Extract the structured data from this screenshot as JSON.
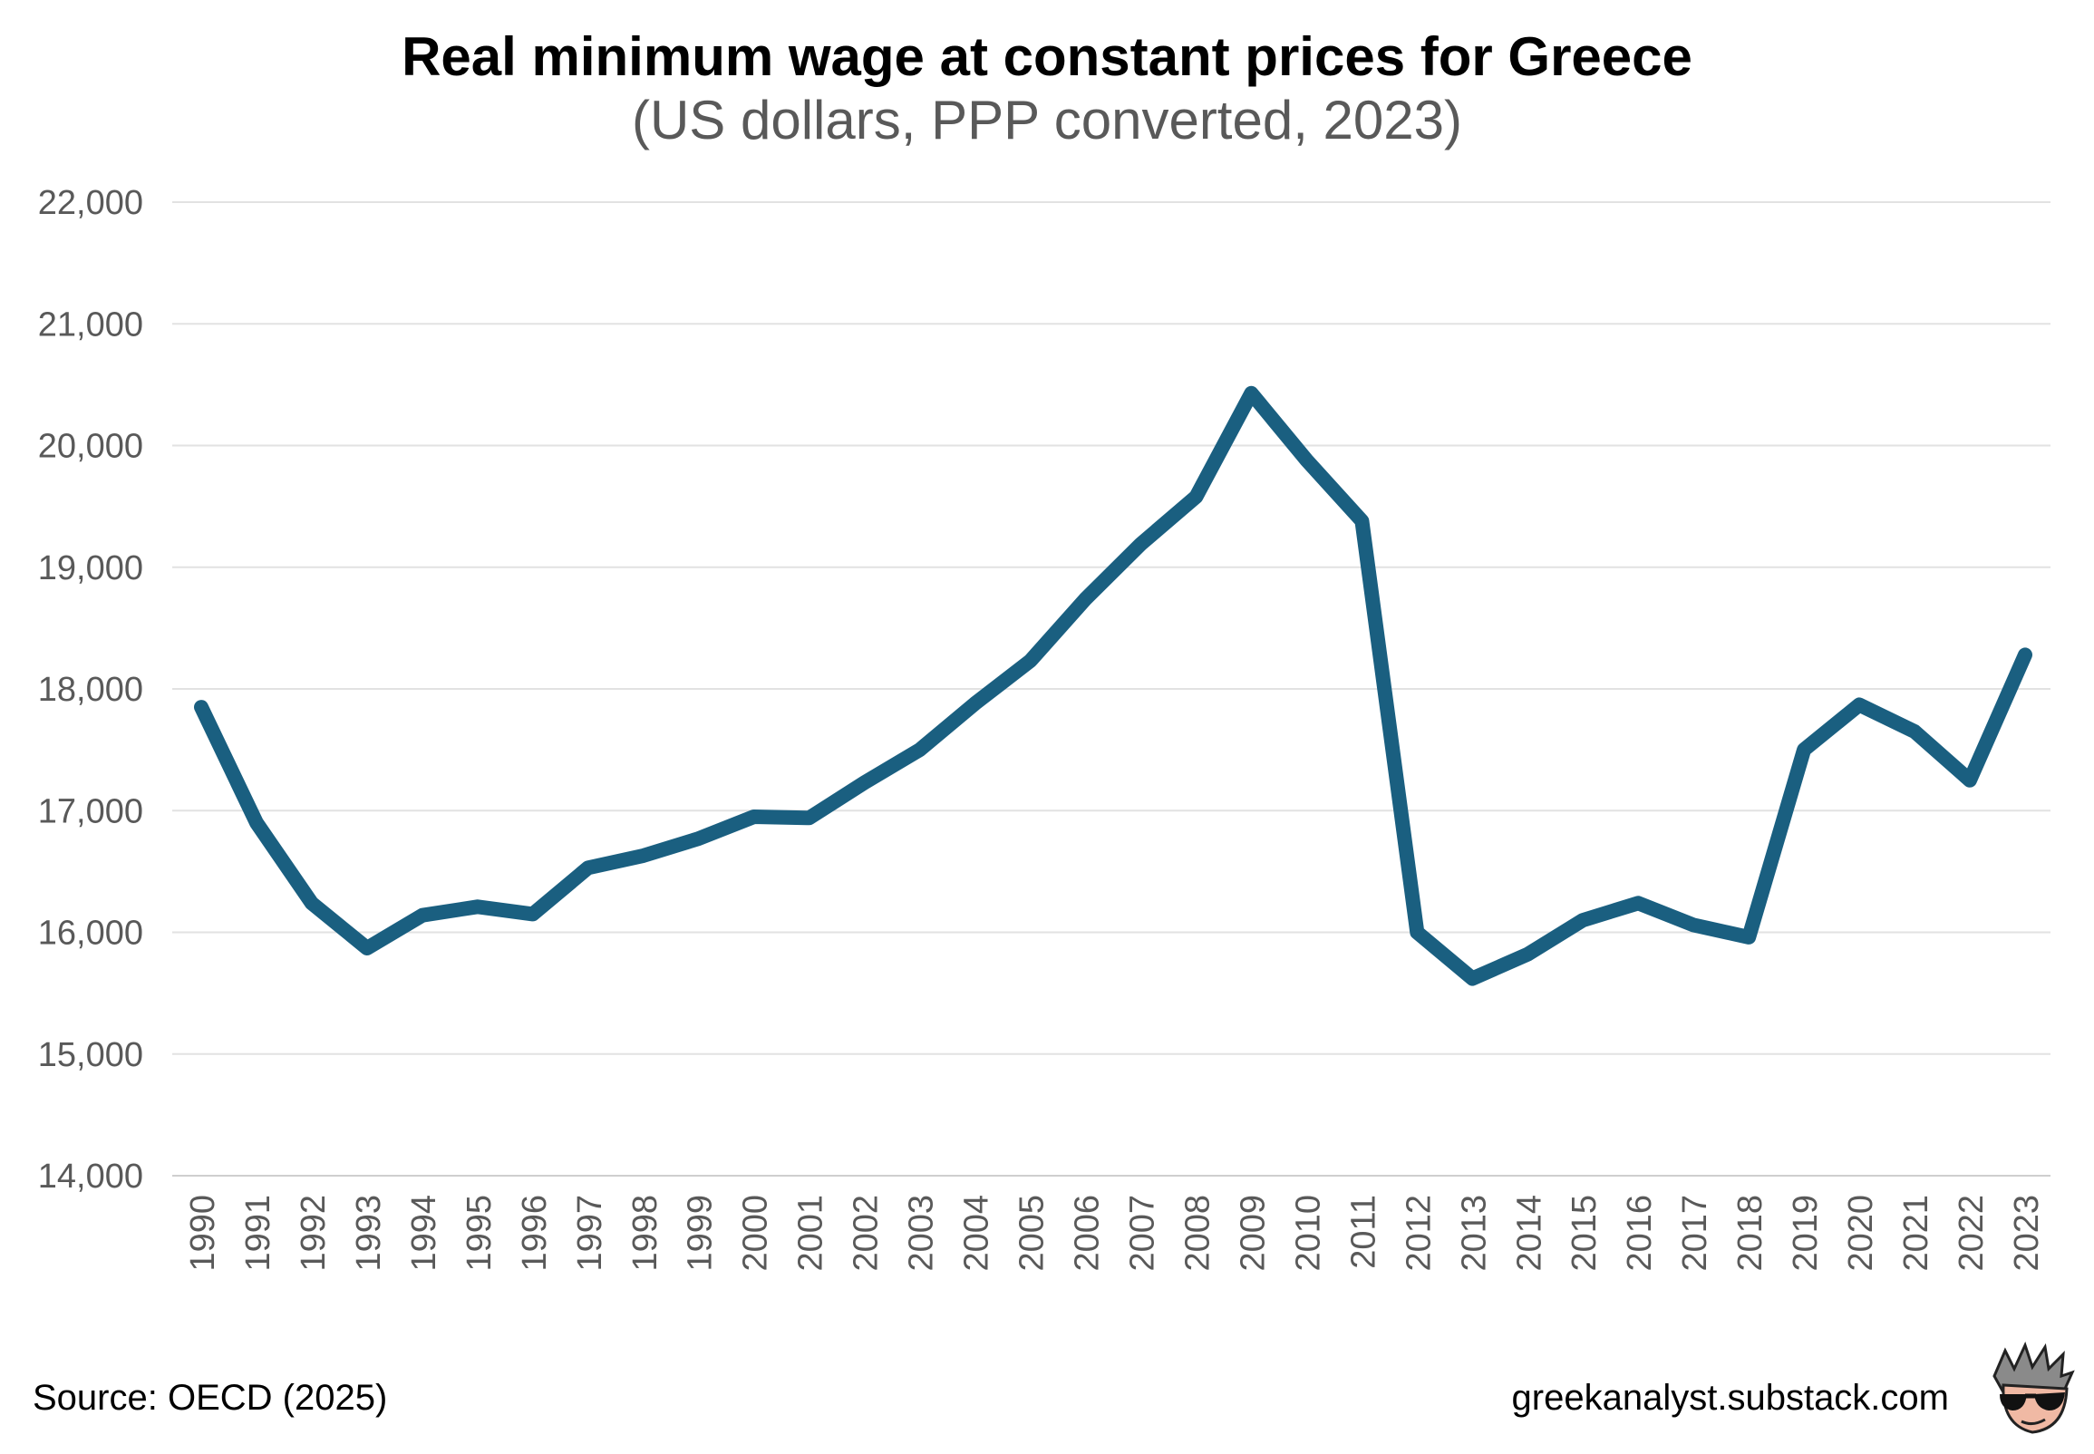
{
  "chart_data": {
    "type": "line",
    "title": "Real minimum wage at constant prices for Greece",
    "subtitle": "(US dollars, PPP converted, 2023)",
    "xlabel": "",
    "ylabel": "",
    "ylim": [
      14000,
      22000
    ],
    "yticks": [
      14000,
      15000,
      16000,
      17000,
      18000,
      19000,
      20000,
      21000,
      22000
    ],
    "ytick_labels": [
      "14,000",
      "15,000",
      "16,000",
      "17,000",
      "18,000",
      "19,000",
      "20,000",
      "21,000",
      "22,000"
    ],
    "grid": true,
    "legend": "none",
    "categories": [
      "1990",
      "1991",
      "1992",
      "1993",
      "1994",
      "1995",
      "1996",
      "1997",
      "1998",
      "1999",
      "2000",
      "2001",
      "2002",
      "2003",
      "2004",
      "2005",
      "2006",
      "2007",
      "2008",
      "2009",
      "2010",
      "2011",
      "2012",
      "2013",
      "2014",
      "2015",
      "2016",
      "2017",
      "2018",
      "2019",
      "2020",
      "2021",
      "2022",
      "2023"
    ],
    "series": [
      {
        "color": "#1a5f80",
        "values": [
          17850,
          16900,
          16240,
          15870,
          16140,
          16210,
          16150,
          16530,
          16630,
          16770,
          16950,
          16940,
          17230,
          17500,
          17880,
          18230,
          18740,
          19190,
          19580,
          20430,
          19880,
          19380,
          16000,
          15620,
          15820,
          16100,
          16240,
          16060,
          15960,
          17500,
          17870,
          17650,
          17250,
          18280
        ]
      }
    ]
  },
  "footer": {
    "source": "Source: OECD (2025)",
    "site": "greekanalyst.substack.com"
  },
  "mascot": {
    "icon": "mascot-sunglasses-icon"
  }
}
